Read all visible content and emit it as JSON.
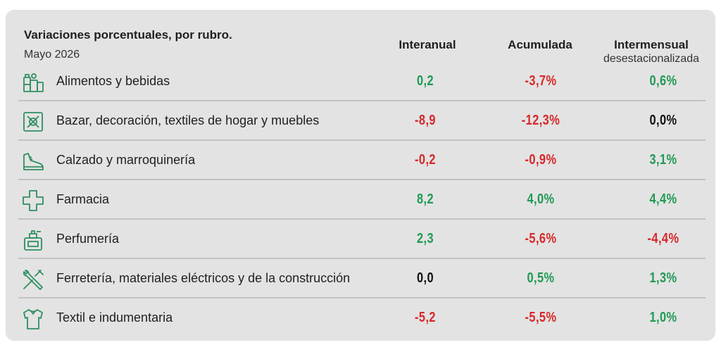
{
  "header": {
    "title": "Variaciones porcentuales, por rubro.",
    "subtitle": "Mayo 2026",
    "columns": [
      {
        "label": "Interanual",
        "sub": ""
      },
      {
        "label": "Acumulada",
        "sub": ""
      },
      {
        "label": "Intermensual",
        "sub": "desestacionalizada"
      }
    ]
  },
  "colors": {
    "positive": "#1f9a55",
    "negative": "#d6282a",
    "neutral": "#111111",
    "icon": "#2f8f5f"
  },
  "rows": [
    {
      "icon": "groceries-icon",
      "label": "Alimentos y bebidas",
      "interanual": "0,2",
      "acumulada": "-3,7%",
      "intermensual": "0,6%"
    },
    {
      "icon": "home-goods-icon",
      "label": "Bazar, decoración, textiles de hogar y muebles",
      "interanual": "-8,9",
      "acumulada": "-12,3%",
      "intermensual": "0,0%"
    },
    {
      "icon": "shoe-icon",
      "label": "Calzado y marroquinería",
      "interanual": "-0,2",
      "acumulada": "-0,9%",
      "intermensual": "3,1%"
    },
    {
      "icon": "pharmacy-cross-icon",
      "label": "Farmacia",
      "interanual": "8,2",
      "acumulada": "4,0%",
      "intermensual": "4,4%"
    },
    {
      "icon": "perfume-icon",
      "label": "Perfumería",
      "interanual": "2,3",
      "acumulada": "-5,6%",
      "intermensual": "-4,4%"
    },
    {
      "icon": "tools-icon",
      "label": "Ferretería, materiales eléctricos y de la construcción",
      "interanual": "0,0",
      "acumulada": "0,5%",
      "intermensual": "1,3%"
    },
    {
      "icon": "shirt-icon",
      "label": "Textil e indumentaria",
      "interanual": "-5,2",
      "acumulada": "-5,5%",
      "intermensual": "1,0%"
    }
  ]
}
